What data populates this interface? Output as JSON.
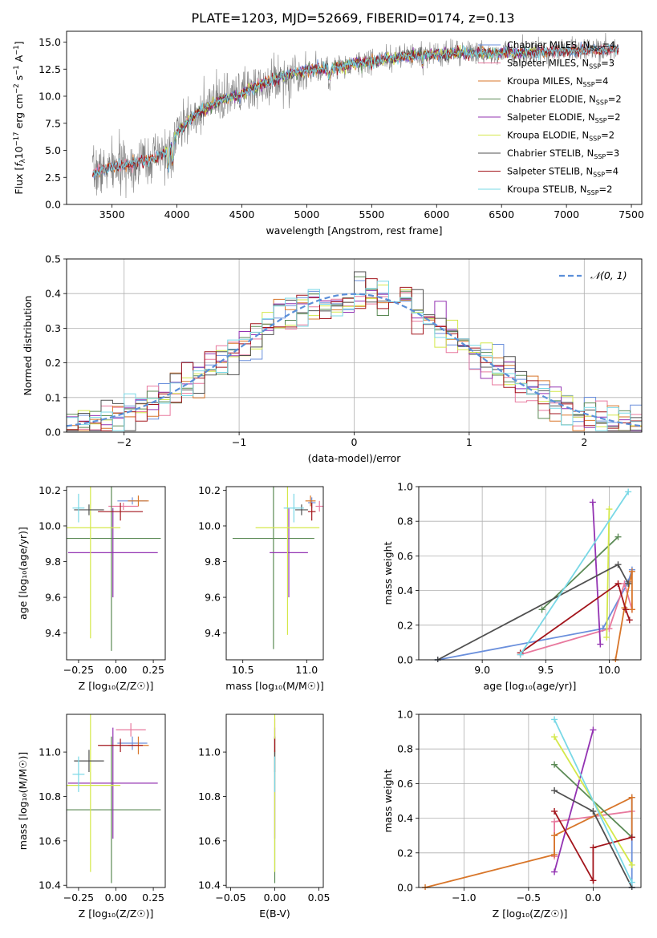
{
  "title": "PLATE=1203, MJD=52669, FIBERID=0174, z=0.13",
  "colors": {
    "Chabrier MILES": "#6a8fdc",
    "Salpeter MILES": "#e8799e",
    "Kroupa MILES": "#d8762a",
    "Chabrier ELODIE": "#5b8a55",
    "Salpeter ELODIE": "#9333b2",
    "Kroupa ELODIE": "#d4e84a",
    "Chabrier STELIB": "#505050",
    "Salpeter STELIB": "#a3151c",
    "Kroupa STELIB": "#79d8e6",
    "data": "#808080",
    "normal": "#5b8fd9"
  },
  "chart_data": [
    {
      "id": "spectrum",
      "type": "line",
      "title": "PLATE=1203, MJD=52669, FIBERID=0174, z=0.13",
      "xlabel": "wavelength [Angstrom, rest frame]",
      "ylabel_parts": [
        "Flux [",
        "f",
        "λ",
        "10",
        "−17",
        " erg cm",
        "−2",
        " s",
        "−1",
        " A",
        "−1",
        "]"
      ],
      "xlim": [
        3150,
        7580
      ],
      "ylim": [
        0,
        16
      ],
      "xticks": [
        3500,
        4000,
        4500,
        5000,
        5500,
        6000,
        6500,
        7000,
        7500
      ],
      "yticks": [
        0.0,
        2.5,
        5.0,
        7.5,
        10.0,
        12.5,
        15.0
      ],
      "ytick_labels": [
        "0.0",
        "2.5",
        "5.0",
        "7.5",
        "10.0",
        "12.5",
        "15.0"
      ],
      "continuum": {
        "x": [
          3350,
          3500,
          3700,
          3850,
          3950,
          4000,
          4150,
          4300,
          4500,
          4700,
          4860,
          5000,
          5200,
          5400,
          5600,
          5800,
          6000,
          6200,
          6400,
          6600,
          6800,
          7000,
          7200,
          7400
        ],
        "y": [
          2.9,
          3.4,
          3.9,
          4.4,
          5.2,
          6.6,
          8.4,
          9.4,
          10.3,
          11.3,
          12.0,
          12.4,
          12.6,
          13.1,
          13.4,
          13.7,
          13.9,
          14.0,
          14.0,
          14.0,
          14.1,
          14.2,
          14.3,
          14.4
        ]
      },
      "legend": [
        {
          "name": "Chabrier MILES",
          "n": "4"
        },
        {
          "name": "Salpeter MILES",
          "n": "3"
        },
        {
          "name": "Kroupa MILES",
          "n": "4"
        },
        {
          "name": "Chabrier ELODIE",
          "n": "2"
        },
        {
          "name": "Salpeter ELODIE",
          "n": "2"
        },
        {
          "name": "Kroupa ELODIE",
          "n": "2"
        },
        {
          "name": "Chabrier STELIB",
          "n": "3"
        },
        {
          "name": "Salpeter STELIB",
          "n": "4"
        },
        {
          "name": "Kroupa STELIB",
          "n": "2"
        }
      ],
      "legend_sub": "SSP",
      "legend_placement": "upper-right"
    },
    {
      "id": "residuals",
      "type": "histogram",
      "xlabel": "(data-model)/error",
      "ylabel": "Normed distribution",
      "xlim": [
        -2.5,
        2.5
      ],
      "ylim": [
        0,
        0.5
      ],
      "xticks": [
        -2,
        -1,
        0,
        1,
        2
      ],
      "xtick_labels": [
        "−2",
        "−1",
        "0",
        "1",
        "2"
      ],
      "yticks": [
        0.0,
        0.1,
        0.2,
        0.3,
        0.4,
        0.5
      ],
      "ytick_labels": [
        "0.0",
        "0.1",
        "0.2",
        "0.3",
        "0.4",
        "0.5"
      ],
      "grid": true,
      "bin_width": 0.1,
      "legend_label": "𝒩(0, 1)",
      "legend_placement": "upper-right"
    },
    {
      "id": "age-z",
      "type": "errorbar",
      "xlabel": "Z [log₁₀(Z/Z☉)]",
      "ylabel": "age  [log₁₀(age/yr)]",
      "xlim": [
        -0.33,
        0.33
      ],
      "ylim": [
        9.25,
        10.22
      ],
      "xticks": [
        -0.25,
        0.0,
        0.25
      ],
      "xtick_labels": [
        "−0.25",
        "0.00",
        "0.25"
      ],
      "yticks": [
        9.4,
        9.6,
        9.8,
        10.0,
        10.2
      ],
      "ytick_labels": [
        "9.4",
        "9.6",
        "9.8",
        "10.0",
        "10.2"
      ],
      "points": [
        {
          "model": "Chabrier MILES",
          "x": 0.11,
          "xerr": 0.1,
          "y": 10.14,
          "yerr": 0.02
        },
        {
          "model": "Salpeter MILES",
          "x": 0.05,
          "xerr": 0.1,
          "y": 10.11,
          "yerr": 0.02
        },
        {
          "model": "Kroupa MILES",
          "x": 0.15,
          "xerr": 0.07,
          "y": 10.14,
          "yerr": 0.03
        },
        {
          "model": "Chabrier ELODIE",
          "x": -0.03,
          "xerr": 0.33,
          "y": 9.93,
          "yerr": 0.63
        },
        {
          "model": "Salpeter ELODIE",
          "x": -0.02,
          "xerr": 0.3,
          "y": 9.85,
          "yerr": 0.25
        },
        {
          "model": "Kroupa ELODIE",
          "x": -0.17,
          "xerr": 0.2,
          "y": 9.99,
          "yerr": 0.62
        },
        {
          "model": "Chabrier STELIB",
          "x": -0.18,
          "xerr": 0.1,
          "y": 10.09,
          "yerr": 0.03
        },
        {
          "model": "Salpeter STELIB",
          "x": 0.03,
          "xerr": 0.15,
          "y": 10.08,
          "yerr": 0.05
        },
        {
          "model": "Kroupa STELIB",
          "x": -0.25,
          "xerr": 0.04,
          "y": 10.1,
          "yerr": 0.08
        }
      ]
    },
    {
      "id": "age-mass",
      "type": "errorbar",
      "xlabel": "mass [log₁₀(M/M☉)]",
      "ylabel": "",
      "xlim": [
        10.37,
        11.13
      ],
      "ylim": [
        9.25,
        10.22
      ],
      "xticks": [
        10.5,
        11.0
      ],
      "xtick_labels": [
        "10.5",
        "11.0"
      ],
      "yticks": [
        9.4,
        9.6,
        9.8,
        10.0,
        10.2
      ],
      "ytick_labels": [
        "9.4",
        "9.6",
        "9.8",
        "10.0",
        "10.2"
      ],
      "points": [
        {
          "model": "Chabrier MILES",
          "x": 11.04,
          "xerr": 0.03,
          "y": 10.13,
          "yerr": 0.03
        },
        {
          "model": "Salpeter MILES",
          "x": 11.1,
          "xerr": 0.03,
          "y": 10.11,
          "yerr": 0.03
        },
        {
          "model": "Kroupa MILES",
          "x": 11.03,
          "xerr": 0.04,
          "y": 10.14,
          "yerr": 0.03
        },
        {
          "model": "Chabrier ELODIE",
          "x": 10.74,
          "xerr": 0.32,
          "y": 9.93,
          "yerr": 0.62
        },
        {
          "model": "Salpeter ELODIE",
          "x": 10.86,
          "xerr": 0.15,
          "y": 9.85,
          "yerr": 0.25
        },
        {
          "model": "Kroupa ELODIE",
          "x": 10.85,
          "xerr": 0.25,
          "y": 9.99,
          "yerr": 0.6
        },
        {
          "model": "Chabrier STELIB",
          "x": 10.96,
          "xerr": 0.05,
          "y": 10.09,
          "yerr": 0.03
        },
        {
          "model": "Salpeter STELIB",
          "x": 11.04,
          "xerr": 0.03,
          "y": 10.08,
          "yerr": 0.05
        },
        {
          "model": "Kroupa STELIB",
          "x": 10.9,
          "xerr": 0.08,
          "y": 10.1,
          "yerr": 0.08
        }
      ]
    },
    {
      "id": "weight-age",
      "type": "line",
      "xlabel": "age  [log₁₀(age/yr)]",
      "ylabel": "mass weight",
      "xlim": [
        8.5,
        10.25
      ],
      "ylim": [
        0,
        1.0
      ],
      "xticks": [
        9.0,
        9.5,
        10.0
      ],
      "xtick_labels": [
        "9.0",
        "9.5",
        "10.0"
      ],
      "yticks": [
        0.0,
        0.2,
        0.4,
        0.6,
        0.8,
        1.0
      ],
      "ytick_labels": [
        "0.0",
        "0.2",
        "0.4",
        "0.6",
        "0.8",
        "1.0"
      ],
      "grid": true,
      "series": [
        {
          "model": "Chabrier MILES",
          "x": [
            8.65,
            9.95,
            10.15,
            10.18
          ],
          "y": [
            0.0,
            0.18,
            0.45,
            0.52
          ]
        },
        {
          "model": "Salpeter MILES",
          "x": [
            9.3,
            10.0,
            10.12,
            10.18
          ],
          "y": [
            0.03,
            0.18,
            0.44,
            0.29
          ]
        },
        {
          "model": "Kroupa MILES",
          "x": [
            10.05,
            10.12,
            10.18,
            10.18
          ],
          "y": [
            0.0,
            0.3,
            0.51,
            0.29
          ]
        },
        {
          "model": "Chabrier ELODIE",
          "x": [
            9.47,
            10.07
          ],
          "y": [
            0.29,
            0.71
          ]
        },
        {
          "model": "Salpeter ELODIE",
          "x": [
            9.87,
            9.93
          ],
          "y": [
            0.91,
            0.09
          ]
        },
        {
          "model": "Kroupa ELODIE",
          "x": [
            9.98,
            10.0
          ],
          "y": [
            0.13,
            0.87
          ]
        },
        {
          "model": "Chabrier STELIB",
          "x": [
            8.65,
            10.07,
            10.15
          ],
          "y": [
            0.0,
            0.55,
            0.44
          ]
        },
        {
          "model": "Salpeter STELIB",
          "x": [
            9.3,
            10.07,
            10.13,
            10.16
          ],
          "y": [
            0.04,
            0.44,
            0.29,
            0.23
          ]
        },
        {
          "model": "Kroupa STELIB",
          "x": [
            9.3,
            10.15
          ],
          "y": [
            0.03,
            0.97
          ]
        }
      ]
    },
    {
      "id": "mass-z",
      "type": "errorbar",
      "xlabel": "Z [log₁₀(Z/Z☉)]",
      "ylabel": "mass [log₁₀(M/M☉)]",
      "xlim": [
        -0.33,
        0.33
      ],
      "ylim": [
        10.39,
        11.17
      ],
      "xticks": [
        -0.25,
        0.0,
        0.25
      ],
      "xtick_labels": [
        "−0.25",
        "0.00",
        "0.25"
      ],
      "yticks": [
        10.4,
        10.6,
        10.8,
        11.0
      ],
      "ytick_labels": [
        "10.4",
        "10.6",
        "10.8",
        "11.0"
      ],
      "points": [
        {
          "model": "Chabrier MILES",
          "x": 0.11,
          "xerr": 0.1,
          "y": 11.04,
          "yerr": 0.03
        },
        {
          "model": "Salpeter MILES",
          "x": 0.1,
          "xerr": 0.1,
          "y": 11.1,
          "yerr": 0.03
        },
        {
          "model": "Kroupa MILES",
          "x": 0.15,
          "xerr": 0.07,
          "y": 11.03,
          "yerr": 0.04
        },
        {
          "model": "Chabrier ELODIE",
          "x": -0.03,
          "xerr": 0.33,
          "y": 10.74,
          "yerr": 0.33
        },
        {
          "model": "Salpeter ELODIE",
          "x": -0.02,
          "xerr": 0.3,
          "y": 10.86,
          "yerr": 0.25
        },
        {
          "model": "Kroupa ELODIE",
          "x": -0.17,
          "xerr": 0.2,
          "y": 10.85,
          "yerr": 0.39
        },
        {
          "model": "Chabrier STELIB",
          "x": -0.18,
          "xerr": 0.1,
          "y": 10.96,
          "yerr": 0.05
        },
        {
          "model": "Salpeter STELIB",
          "x": 0.03,
          "xerr": 0.15,
          "y": 11.03,
          "yerr": 0.03
        },
        {
          "model": "Kroupa STELIB",
          "x": -0.25,
          "xerr": 0.04,
          "y": 10.9,
          "yerr": 0.08
        }
      ]
    },
    {
      "id": "mass-ebv",
      "type": "errorbar",
      "xlabel": "E(B-V)",
      "ylabel": "",
      "xlim": [
        -0.055,
        0.055
      ],
      "ylim": [
        10.39,
        11.17
      ],
      "xticks": [
        -0.05,
        0.0,
        0.05
      ],
      "xtick_labels": [
        "−0.05",
        "0.00",
        "0.05"
      ],
      "yticks": [
        10.4,
        10.6,
        10.8,
        11.0
      ],
      "ytick_labels": [
        "10.4",
        "10.6",
        "10.8",
        "11.0"
      ],
      "points": [
        {
          "model": "Chabrier MILES",
          "x": 0.0,
          "xerr": 0.0,
          "y": 11.04,
          "yerr": 0.03
        },
        {
          "model": "Salpeter MILES",
          "x": 0.0,
          "xerr": 0.0,
          "y": 11.1,
          "yerr": 0.05
        },
        {
          "model": "Kroupa MILES",
          "x": 0.0,
          "xerr": 0.0,
          "y": 11.03,
          "yerr": 0.04
        },
        {
          "model": "Chabrier ELODIE",
          "x": 0.0,
          "xerr": 0.0,
          "y": 10.74,
          "yerr": 0.33
        },
        {
          "model": "Salpeter ELODIE",
          "x": 0.0,
          "xerr": 0.0,
          "y": 10.86,
          "yerr": 0.25
        },
        {
          "model": "Kroupa ELODIE",
          "x": 0.0,
          "xerr": 0.0,
          "y": 10.85,
          "yerr": 0.39
        },
        {
          "model": "Chabrier STELIB",
          "x": 0.0,
          "xerr": 0.0,
          "y": 10.96,
          "yerr": 0.05
        },
        {
          "model": "Salpeter STELIB",
          "x": 0.0,
          "xerr": 0.0,
          "y": 11.03,
          "yerr": 0.03
        },
        {
          "model": "Kroupa STELIB",
          "x": 0.0,
          "xerr": 0.0,
          "y": 10.9,
          "yerr": 0.08
        }
      ]
    },
    {
      "id": "weight-z",
      "type": "line",
      "xlabel": "Z [log₁₀(Z/Z☉)]",
      "ylabel": "mass weight",
      "xlim": [
        -1.35,
        0.37
      ],
      "ylim": [
        0,
        1.0
      ],
      "xticks": [
        -1.0,
        -0.5,
        0.0
      ],
      "xtick_labels": [
        "−1.0",
        "−0.5",
        "0.0"
      ],
      "yticks": [
        0.0,
        0.2,
        0.4,
        0.6,
        0.8,
        1.0
      ],
      "ytick_labels": [
        "0.0",
        "0.2",
        "0.4",
        "0.6",
        "0.8",
        "1.0"
      ],
      "grid": true,
      "series": [
        {
          "model": "Chabrier MILES",
          "x": [
            0.3,
            0.3
          ],
          "y": [
            0.0,
            0.52
          ]
        },
        {
          "model": "Salpeter MILES",
          "x": [
            -0.3,
            -0.3,
            0.3
          ],
          "y": [
            0.18,
            0.38,
            0.44
          ]
        },
        {
          "model": "Kroupa MILES",
          "x": [
            -1.3,
            -0.3,
            -0.3,
            0.3,
            0.3
          ],
          "y": [
            0.0,
            0.19,
            0.3,
            0.52,
            0.29
          ]
        },
        {
          "model": "Chabrier ELODIE",
          "x": [
            -0.3,
            0.3
          ],
          "y": [
            0.71,
            0.29
          ]
        },
        {
          "model": "Salpeter ELODIE",
          "x": [
            -0.3,
            0.0
          ],
          "y": [
            0.09,
            0.91
          ]
        },
        {
          "model": "Kroupa ELODIE",
          "x": [
            -0.3,
            0.3
          ],
          "y": [
            0.87,
            0.13
          ]
        },
        {
          "model": "Chabrier STELIB",
          "x": [
            -0.3,
            0.0,
            0.3
          ],
          "y": [
            0.56,
            0.44,
            0.0
          ]
        },
        {
          "model": "Salpeter STELIB",
          "x": [
            -0.3,
            0.0,
            0.0,
            0.3
          ],
          "y": [
            0.44,
            0.04,
            0.23,
            0.29
          ]
        },
        {
          "model": "Kroupa STELIB",
          "x": [
            -0.3,
            0.3
          ],
          "y": [
            0.97,
            0.03
          ]
        }
      ]
    }
  ]
}
